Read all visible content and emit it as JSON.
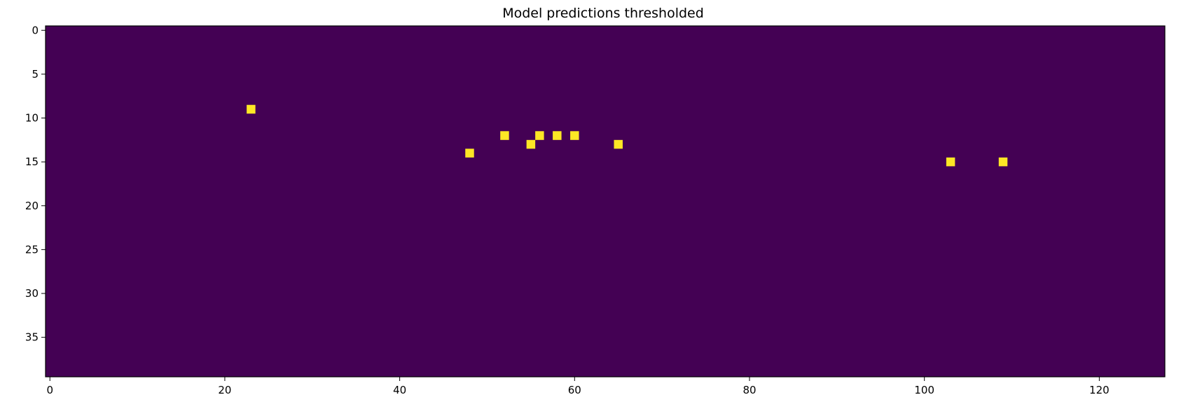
{
  "chart_data": {
    "type": "heatmap",
    "title": "Model predictions thresholded",
    "xlabel": "",
    "ylabel": "",
    "grid": false,
    "legend": "none",
    "image_shape": {
      "rows": 40,
      "cols": 128
    },
    "xlim": [
      -0.5,
      127.5
    ],
    "ylim": [
      39.5,
      -0.5
    ],
    "x_ticks": [
      0,
      20,
      40,
      60,
      80,
      100,
      120
    ],
    "x_tick_labels": [
      "0",
      "20",
      "40",
      "60",
      "80",
      "100",
      "120"
    ],
    "y_ticks": [
      0,
      5,
      10,
      15,
      20,
      25,
      30,
      35
    ],
    "y_tick_labels": [
      "0",
      "5",
      "10",
      "15",
      "20",
      "25",
      "30",
      "35"
    ],
    "background_value": 0,
    "colors": {
      "zero": "#440154",
      "one": "#fde725"
    },
    "points": [
      {
        "x": 23,
        "y": 9,
        "value": 1
      },
      {
        "x": 48,
        "y": 14,
        "value": 1
      },
      {
        "x": 52,
        "y": 12,
        "value": 1
      },
      {
        "x": 55,
        "y": 13,
        "value": 1
      },
      {
        "x": 56,
        "y": 12,
        "value": 1
      },
      {
        "x": 58,
        "y": 12,
        "value": 1
      },
      {
        "x": 60,
        "y": 12,
        "value": 1
      },
      {
        "x": 65,
        "y": 13,
        "value": 1
      },
      {
        "x": 103,
        "y": 15,
        "value": 1
      },
      {
        "x": 109,
        "y": 15,
        "value": 1
      }
    ]
  }
}
